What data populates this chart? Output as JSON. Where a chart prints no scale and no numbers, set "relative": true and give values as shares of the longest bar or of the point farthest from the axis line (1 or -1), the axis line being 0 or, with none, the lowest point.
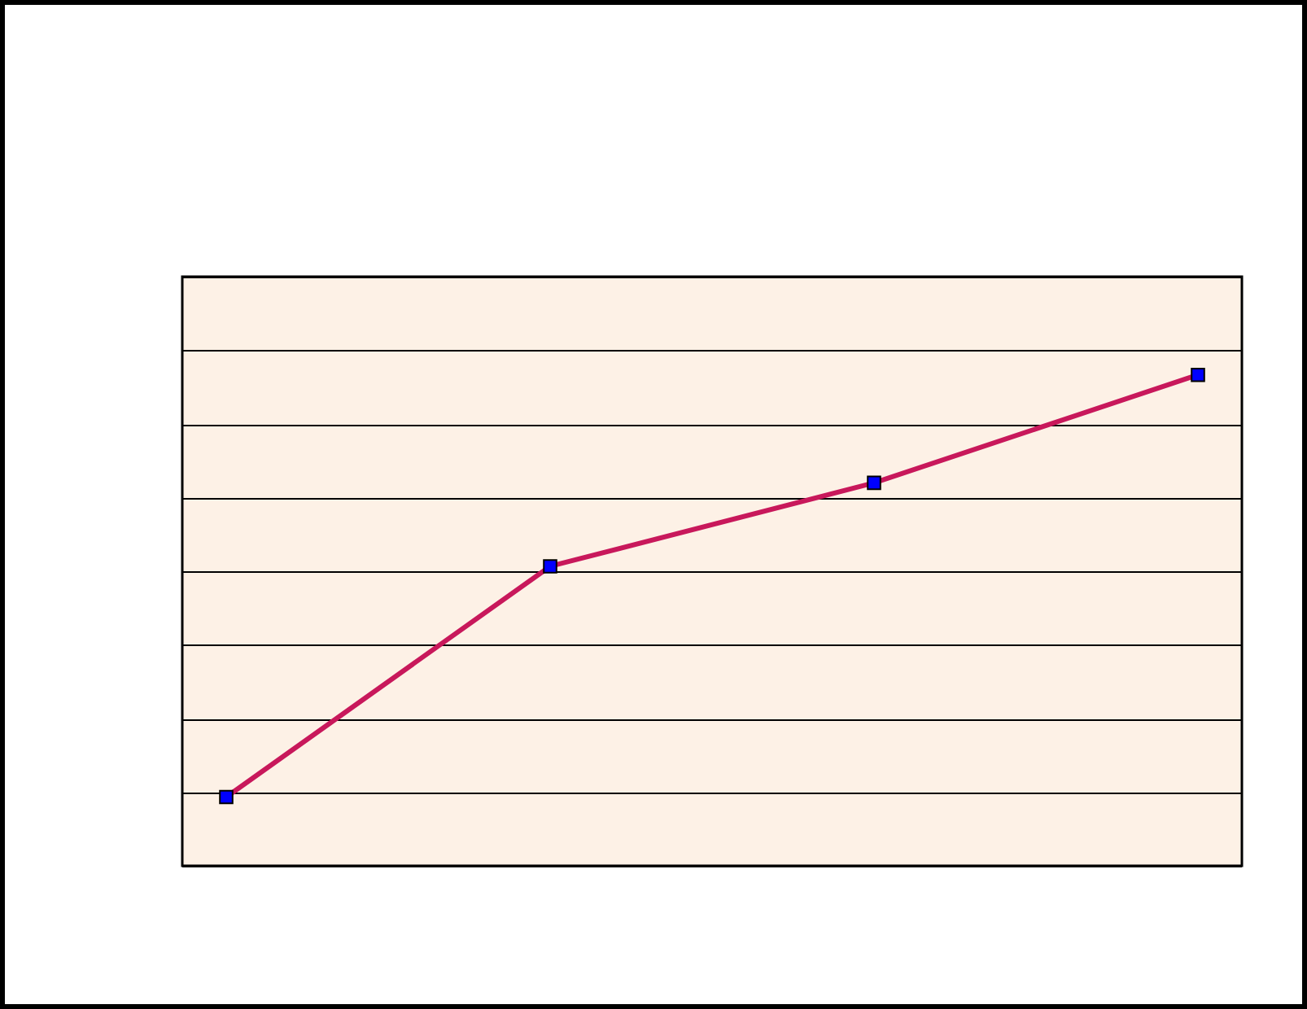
{
  "chart_data": {
    "type": "line",
    "relative": true,
    "categories": [
      null,
      null,
      null,
      null
    ],
    "values": [
      0.14,
      0.61,
      0.78,
      1
    ],
    "color": "#c8185b",
    "colors": [
      "#0000ff",
      "#0000ff",
      "#0000ff",
      "#0000ff"
    ],
    "marker": "square",
    "line_style": "solid",
    "grid": "y"
  }
}
